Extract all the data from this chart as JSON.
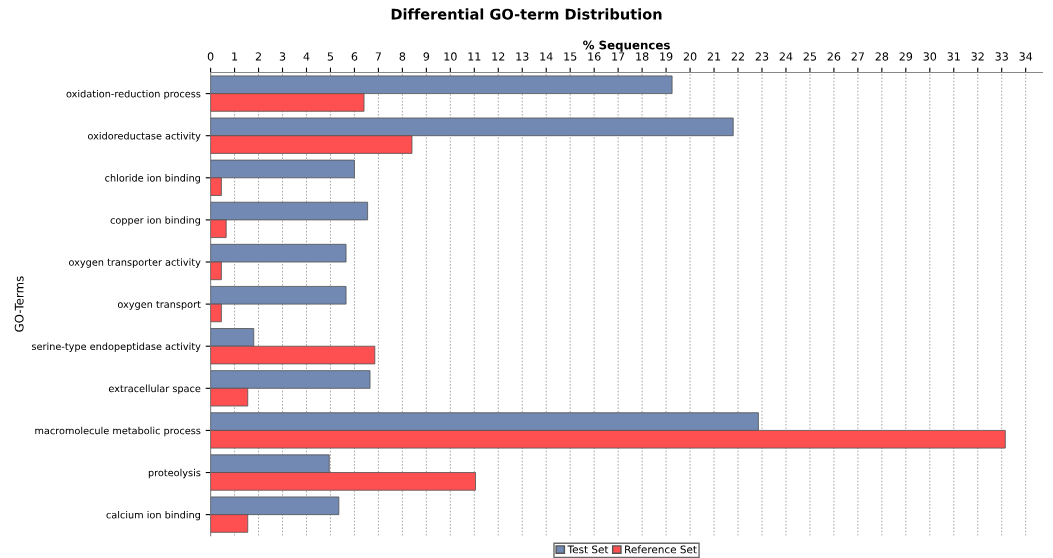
{
  "chart_data": {
    "type": "bar",
    "orientation": "horizontal",
    "title": "Differential GO-term Distribution",
    "xlabel": "% Sequences",
    "ylabel": "GO-Terms",
    "categories": [
      "oxidation-reduction process",
      "oxidoreductase activity",
      "chloride ion binding",
      "copper ion binding",
      "oxygen transporter activity",
      "oxygen transport",
      "serine-type endopeptidase activity",
      "extracellular space",
      "macromolecule metabolic process",
      "proteolysis",
      "calcium ion binding"
    ],
    "series": [
      {
        "name": "Test Set",
        "color": "#7189b3",
        "values": [
          19.25,
          21.8,
          6.0,
          6.55,
          5.65,
          5.65,
          1.8,
          6.65,
          22.85,
          4.95,
          5.35
        ]
      },
      {
        "name": "Reference Set",
        "color": "#fe4f51",
        "values": [
          6.4,
          8.4,
          0.45,
          0.65,
          0.45,
          0.45,
          6.85,
          1.55,
          33.15,
          11.05,
          1.55
        ]
      }
    ],
    "xlim": [
      0,
      34.7
    ],
    "xticks": [
      0,
      1,
      2,
      3,
      4,
      5,
      6,
      7,
      8,
      9,
      10,
      11,
      12,
      13,
      14,
      15,
      16,
      17,
      18,
      19,
      20,
      21,
      22,
      23,
      24,
      25,
      26,
      27,
      28,
      29,
      30,
      31,
      32,
      33,
      34
    ],
    "grid": "x",
    "legend": "bottom"
  }
}
